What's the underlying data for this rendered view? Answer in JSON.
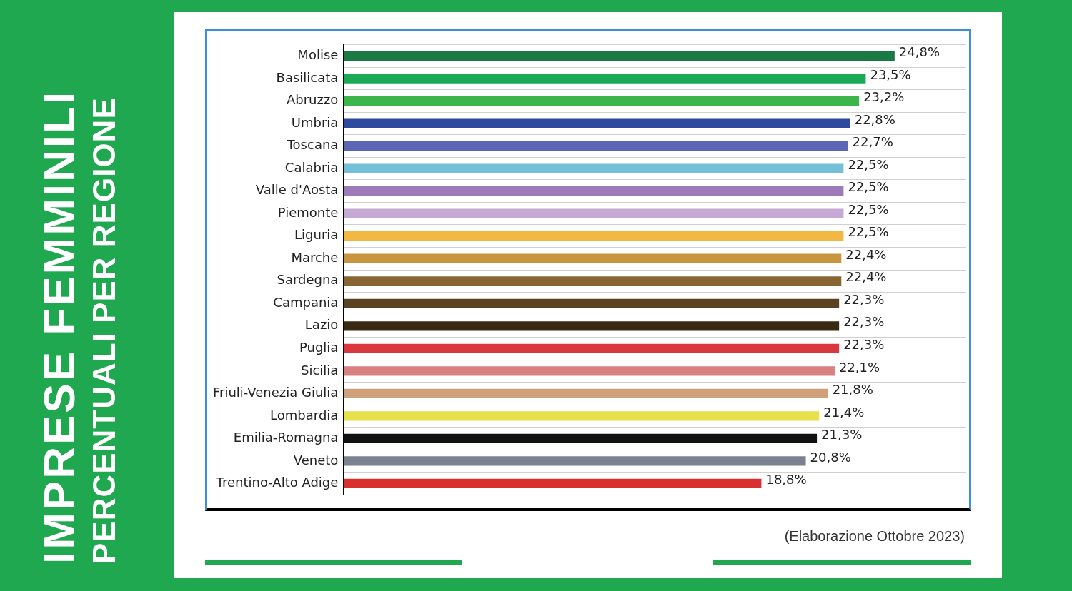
{
  "chart_data": {
    "type": "bar",
    "orientation": "horizontal",
    "title": "IMPRESE FEMMINILI",
    "subtitle": "PERCENTUALI PER REGIONE",
    "categories": [
      "Molise",
      "Basilicata",
      "Abruzzo",
      "Umbria",
      "Toscana",
      "Calabria",
      "Valle d'Aosta",
      "Piemonte",
      "Liguria",
      "Marche",
      "Sardegna",
      "Campania",
      "Lazio",
      "Puglia",
      "Sicilia",
      "Friuli-Venezia Giulia",
      "Lombardia",
      "Emilia-Romagna",
      "Veneto",
      "Trentino-Alto Adige"
    ],
    "values": [
      24.8,
      23.5,
      23.2,
      22.8,
      22.7,
      22.5,
      22.5,
      22.5,
      22.5,
      22.4,
      22.4,
      22.3,
      22.3,
      22.3,
      22.1,
      21.8,
      21.4,
      21.3,
      20.8,
      18.8
    ],
    "value_labels": [
      "24,8%",
      "23,5%",
      "23,2%",
      "22,8%",
      "22,7%",
      "22,5%",
      "22,5%",
      "22,5%",
      "22,5%",
      "22,4%",
      "22,4%",
      "22,3%",
      "22,3%",
      "22,3%",
      "22,1%",
      "21,8%",
      "21,4%",
      "21,3%",
      "20,8%",
      "18,8%"
    ],
    "colors": [
      "#1b7a44",
      "#1aaa55",
      "#3cb54a",
      "#2e4a9e",
      "#5b67b5",
      "#74c0d8",
      "#9c7bb8",
      "#c6a9d4",
      "#f2b843",
      "#c9953e",
      "#876633",
      "#5b4220",
      "#3a2a14",
      "#d9383e",
      "#d98080",
      "#cfa07a",
      "#e6e04a",
      "#111111",
      "#7a8290",
      "#d9302f"
    ],
    "grid": "y",
    "legend": false,
    "annotations": [
      "(Elaborazione Ottobre 2023)"
    ]
  }
}
